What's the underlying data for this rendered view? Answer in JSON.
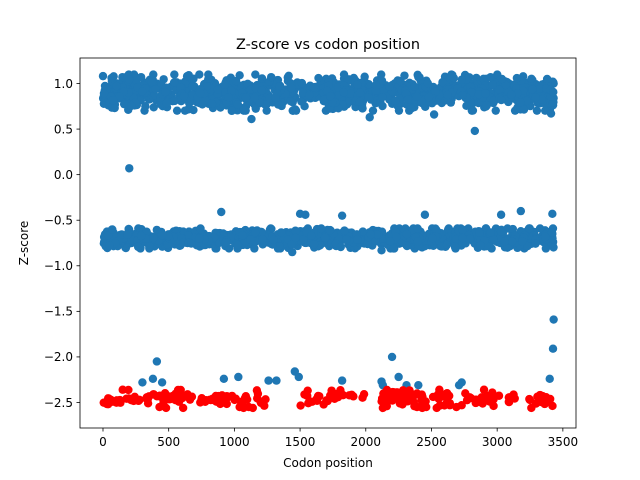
{
  "chart_data": {
    "type": "scatter",
    "title": "Z-score vs codon position",
    "xlabel": "Codon position",
    "ylabel": "Z-score",
    "xlim": [
      -175,
      3600
    ],
    "ylim": [
      -2.78,
      1.28
    ],
    "xticks": [
      0,
      500,
      1000,
      1500,
      2000,
      2500,
      3000,
      3500
    ],
    "yticks": [
      1.0,
      0.5,
      0.0,
      -0.5,
      -1.0,
      -1.5,
      -2.0,
      -2.5
    ],
    "ytick_labels": [
      "1.0",
      "0.5",
      "0.0",
      "−0.5",
      "−1.0",
      "−1.5",
      "−2.0",
      "−2.5"
    ],
    "grid": false,
    "legend": "none",
    "colors": {
      "blue": "#1f77b4",
      "red": "#ff0000"
    },
    "series": [
      {
        "color": "#1f77b4",
        "bands": [
          {
            "x_min": 0,
            "x_max": 3430,
            "y_center": 0.9,
            "y_spread": 0.09,
            "count": 1100,
            "seed": 11
          },
          {
            "x_min": 0,
            "x_max": 3430,
            "y_center": -0.7,
            "y_spread": 0.05,
            "count": 1100,
            "seed": 23
          }
        ],
        "points": [
          [
            200,
            0.07
          ],
          [
            2830,
            0.48
          ],
          [
            1130,
            0.61
          ],
          [
            2030,
            0.63
          ],
          [
            2520,
            0.66
          ],
          [
            3410,
            0.67
          ],
          [
            980,
            0.7
          ],
          [
            65,
            1.06
          ],
          [
            290,
            1.07
          ],
          [
            640,
            1.08
          ],
          [
            1040,
            1.09
          ],
          [
            1280,
            1.07
          ],
          [
            1640,
            1.06
          ],
          [
            2400,
            1.07
          ],
          [
            2670,
            1.06
          ],
          [
            2950,
            1.07
          ],
          [
            3150,
            1.06
          ],
          [
            900,
            -0.41
          ],
          [
            1500,
            -0.43
          ],
          [
            1540,
            -0.44
          ],
          [
            1820,
            -0.45
          ],
          [
            2450,
            -0.44
          ],
          [
            3030,
            -0.44
          ],
          [
            3180,
            -0.4
          ],
          [
            3420,
            -0.43
          ],
          [
            1440,
            -0.85
          ],
          [
            2120,
            -0.83
          ],
          [
            3430,
            -1.59
          ],
          [
            3425,
            -1.91
          ],
          [
            2200,
            -2.0
          ],
          [
            410,
            -2.05
          ],
          [
            1460,
            -2.16
          ],
          [
            1490,
            -2.22
          ],
          [
            2250,
            -2.22
          ],
          [
            300,
            -2.28
          ],
          [
            380,
            -2.24
          ],
          [
            450,
            -2.28
          ],
          [
            920,
            -2.24
          ],
          [
            1030,
            -2.22
          ],
          [
            1260,
            -2.26
          ],
          [
            1320,
            -2.26
          ],
          [
            1820,
            -2.26
          ],
          [
            2120,
            -2.27
          ],
          [
            2130,
            -2.31
          ],
          [
            2310,
            -2.31
          ],
          [
            2400,
            -2.31
          ],
          [
            2710,
            -2.31
          ],
          [
            2730,
            -2.28
          ],
          [
            3400,
            -2.24
          ]
        ]
      },
      {
        "color": "#ff0000",
        "bands": [
          {
            "x_min": 0,
            "x_max": 3430,
            "y_center": -2.45,
            "y_spread": 0.04,
            "count": 230,
            "seed": 37,
            "gaps": [
              [
                680,
                740
              ],
              [
                1240,
                1500
              ],
              [
                1990,
                2060
              ],
              [
                2660,
                2740
              ],
              [
                3020,
                3060
              ],
              [
                3140,
                3230
              ]
            ]
          }
        ],
        "points": [
          [
            150,
            -2.36
          ],
          [
            430,
            -2.55
          ],
          [
            480,
            -2.56
          ],
          [
            610,
            -2.56
          ],
          [
            1040,
            -2.55
          ],
          [
            1070,
            -2.56
          ],
          [
            1110,
            -2.55
          ],
          [
            1140,
            -2.56
          ],
          [
            2130,
            -2.56
          ],
          [
            2160,
            -2.54
          ],
          [
            2370,
            -2.54
          ],
          [
            2390,
            -2.55
          ],
          [
            2430,
            -2.56
          ],
          [
            2460,
            -2.55
          ],
          [
            2540,
            -2.56
          ],
          [
            2640,
            -2.53
          ],
          [
            2690,
            -2.55
          ],
          [
            2730,
            -2.53
          ],
          [
            3260,
            -2.56
          ],
          [
            1740,
            -2.37
          ],
          [
            2560,
            -2.36
          ],
          [
            2900,
            -2.36
          ]
        ]
      }
    ]
  }
}
